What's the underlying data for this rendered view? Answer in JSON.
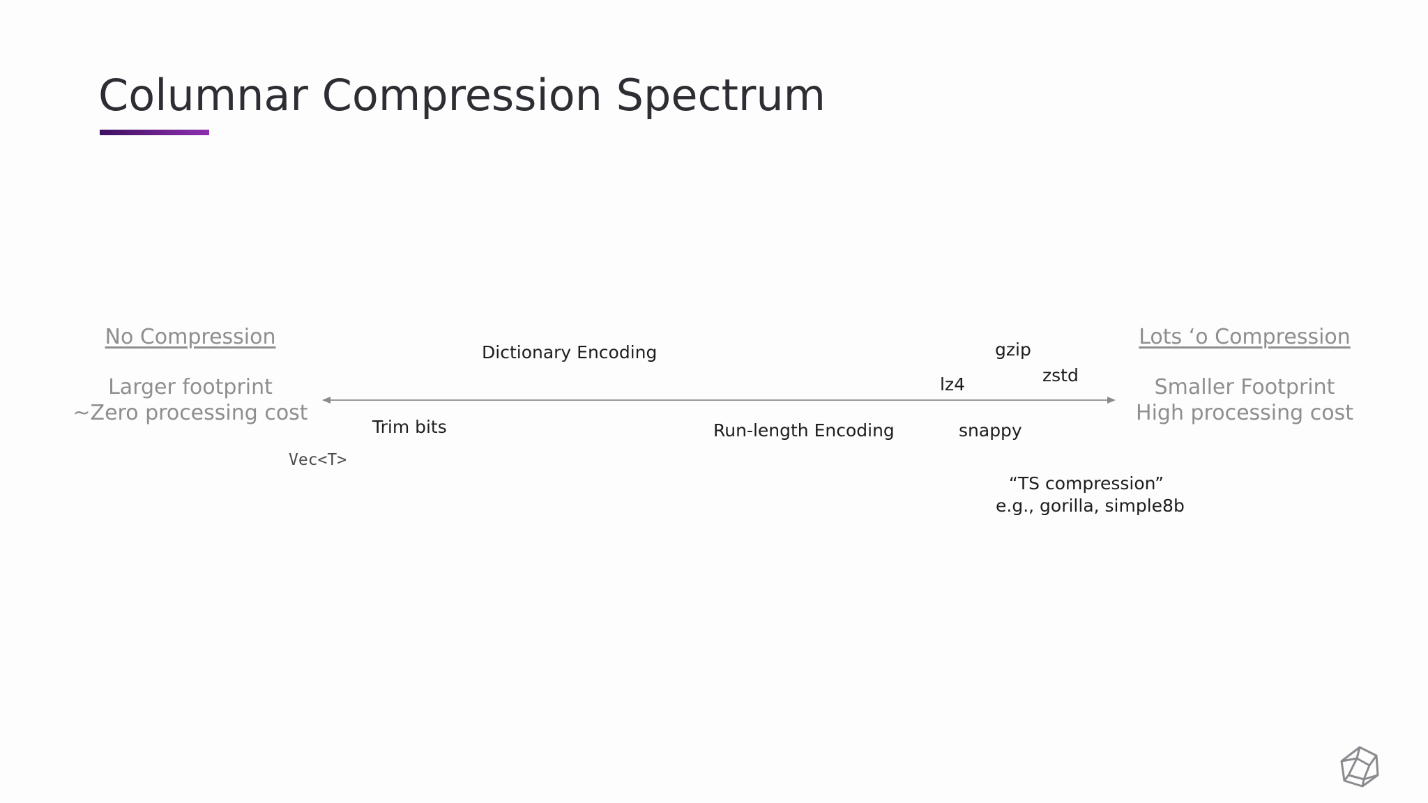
{
  "slide": {
    "title": "Columnar Compression Spectrum"
  },
  "left_pole": {
    "heading": "No Compression",
    "line1": "Larger footprint",
    "line2": "~Zero processing cost"
  },
  "right_pole": {
    "heading": "Lots ‘o Compression",
    "line1": "Smaller Footprint",
    "line2": "High processing cost"
  },
  "techniques": {
    "dictionary": "Dictionary Encoding",
    "trim_bits": "Trim bits",
    "vec": "Vec<T>",
    "rle": "Run-length Encoding",
    "lz4": "lz4",
    "gzip": "gzip",
    "zstd": "zstd",
    "snappy": "snappy",
    "ts_line1": "“TS compression”",
    "ts_line2": "e.g., gorilla, simple8b"
  },
  "colors": {
    "title_accent_start": "#3f1060",
    "title_accent_end": "#8e2fb0",
    "axis": "#9a9a9a"
  },
  "icons": {
    "logo": "polyhedron-logo-icon"
  }
}
